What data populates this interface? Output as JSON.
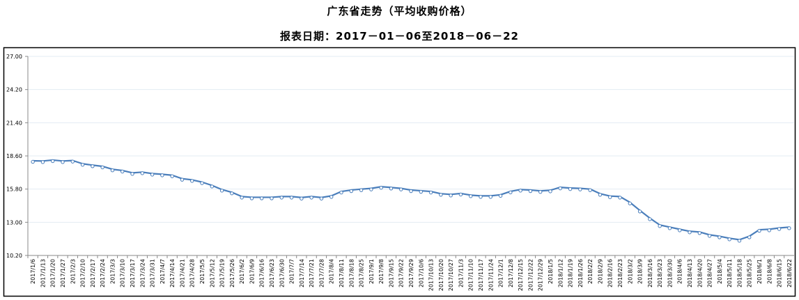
{
  "chart_data": {
    "type": "line",
    "title": "广东省走势（平均收购价格）",
    "subtitle": "报表日期：2017－01－06至2018－06－22",
    "xlabel": "",
    "ylabel": "",
    "ylim": [
      10.2,
      27.0
    ],
    "yticks": [
      "10.20",
      "13.00",
      "15.80",
      "18.60",
      "21.40",
      "24.20",
      "27.00"
    ],
    "grid": true,
    "legend": "none",
    "color": "#4a7ebb",
    "categories": [
      "2017/1/6",
      "2017/1/13",
      "2017/1/20",
      "2017/1/27",
      "2017/2/3",
      "2017/2/10",
      "2017/2/17",
      "2017/2/24",
      "2017/3/3",
      "2017/3/10",
      "2017/3/17",
      "2017/3/24",
      "2017/3/31",
      "2017/4/7",
      "2017/4/14",
      "2017/4/21",
      "2017/4/28",
      "2017/5/5",
      "2017/5/12",
      "2017/5/19",
      "2017/5/26",
      "2017/6/2",
      "2017/6/9",
      "2017/6/16",
      "2017/6/23",
      "2017/6/30",
      "2017/7/7",
      "2017/7/14",
      "2017/7/21",
      "2017/7/28",
      "2017/8/4",
      "2017/8/11",
      "2017/8/18",
      "2017/8/25",
      "2017/9/1",
      "2017/9/8",
      "2017/9/15",
      "2017/9/22",
      "2017/9/29",
      "2017/10/6",
      "2017/10/13",
      "2017/10/20",
      "2017/10/27",
      "2017/11/3",
      "2017/11/10",
      "2017/11/17",
      "2017/11/24",
      "2017/12/1",
      "2017/12/8",
      "2017/12/15",
      "2017/12/22",
      "2017/12/29",
      "2018/1/5",
      "2018/1/12",
      "2018/1/19",
      "2018/1/26",
      "2018/2/2",
      "2018/2/9",
      "2018/2/16",
      "2018/2/23",
      "2018/3/2",
      "2018/3/9",
      "2018/3/16",
      "2018/3/23",
      "2018/3/30",
      "2018/4/6",
      "2018/4/13",
      "2018/4/20",
      "2018/4/27",
      "2018/5/4",
      "2018/5/11",
      "2018/5/18",
      "2018/5/25",
      "2018/6/1",
      "2018/6/8",
      "2018/6/15",
      "2018/6/22"
    ],
    "values": [
      18.19,
      18.17,
      18.25,
      18.17,
      18.21,
      17.94,
      17.82,
      17.72,
      17.47,
      17.37,
      17.17,
      17.23,
      17.11,
      17.05,
      16.97,
      16.68,
      16.58,
      16.39,
      16.11,
      15.76,
      15.53,
      15.17,
      15.11,
      15.11,
      15.11,
      15.17,
      15.17,
      15.09,
      15.17,
      15.09,
      15.23,
      15.6,
      15.72,
      15.8,
      15.86,
      16.0,
      15.94,
      15.86,
      15.72,
      15.66,
      15.6,
      15.41,
      15.35,
      15.43,
      15.29,
      15.23,
      15.23,
      15.32,
      15.61,
      15.76,
      15.72,
      15.65,
      15.7,
      15.95,
      15.89,
      15.86,
      15.8,
      15.41,
      15.21,
      15.17,
      14.68,
      14.0,
      13.35,
      12.77,
      12.59,
      12.41,
      12.24,
      12.18,
      11.94,
      11.82,
      11.65,
      11.53,
      11.82,
      12.37,
      12.41,
      12.52,
      12.59
    ]
  }
}
